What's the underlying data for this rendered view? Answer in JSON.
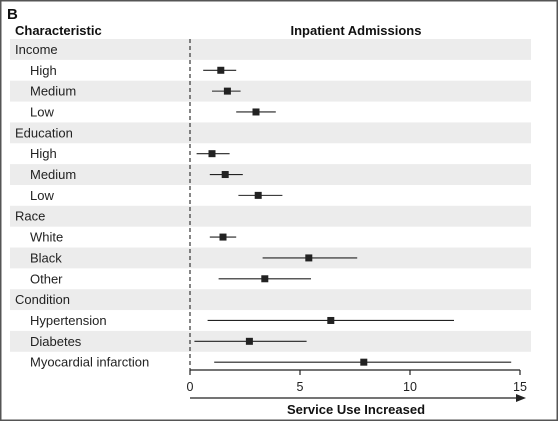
{
  "panel_label": "B",
  "header": {
    "characteristic": "Characteristic",
    "inpatient_admissions": "Inpatient Admissions"
  },
  "xlabel": "Service Use Increased",
  "chart_data": {
    "type": "forest",
    "title": "Inpatient Admissions",
    "xlabel": "Service Use Increased",
    "xlim": [
      0,
      15
    ],
    "xticks": [
      0,
      5,
      10,
      15
    ],
    "reference_line": 0,
    "rows": [
      {
        "label": "Income",
        "group": true
      },
      {
        "label": "High",
        "estimate": 1.4,
        "ci_low": 0.6,
        "ci_high": 2.1
      },
      {
        "label": "Medium",
        "estimate": 1.7,
        "ci_low": 1.0,
        "ci_high": 2.3
      },
      {
        "label": "Low",
        "estimate": 3.0,
        "ci_low": 2.1,
        "ci_high": 3.9
      },
      {
        "label": "Education",
        "group": true
      },
      {
        "label": "High",
        "estimate": 1.0,
        "ci_low": 0.3,
        "ci_high": 1.8
      },
      {
        "label": "Medium",
        "estimate": 1.6,
        "ci_low": 0.9,
        "ci_high": 2.4
      },
      {
        "label": "Low",
        "estimate": 3.1,
        "ci_low": 2.2,
        "ci_high": 4.2
      },
      {
        "label": "Race",
        "group": true
      },
      {
        "label": "White",
        "estimate": 1.5,
        "ci_low": 0.9,
        "ci_high": 2.1
      },
      {
        "label": "Black",
        "estimate": 5.4,
        "ci_low": 3.3,
        "ci_high": 7.6
      },
      {
        "label": "Other",
        "estimate": 3.4,
        "ci_low": 1.3,
        "ci_high": 5.5
      },
      {
        "label": "Condition",
        "group": true
      },
      {
        "label": "Hypertension",
        "estimate": 6.4,
        "ci_low": 0.8,
        "ci_high": 12.0
      },
      {
        "label": "Diabetes",
        "estimate": 2.7,
        "ci_low": 0.2,
        "ci_high": 5.3
      },
      {
        "label": "Myocardial infarction",
        "estimate": 7.9,
        "ci_low": 1.1,
        "ci_high": 14.6
      }
    ]
  }
}
